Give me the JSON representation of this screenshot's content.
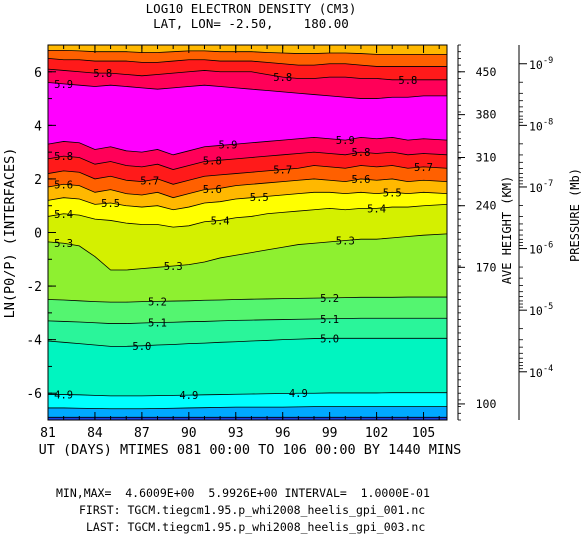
{
  "chart_data": {
    "type": "contour",
    "title": "LOG10 ELECTRON DENSITY (CM3)",
    "subtitle": "LAT, LON= -2.50,    180.00",
    "xlabel": "UT (DAYS) MTIMES 081 00:00 TO 106 00:00 BY 1440 MINS",
    "ylabel": "LN(P0/P) (INTERFACES)",
    "xlim": [
      81,
      106.5
    ],
    "ylim": [
      -7,
      7
    ],
    "x_ticks": [
      81,
      84,
      87,
      90,
      93,
      96,
      99,
      102,
      105
    ],
    "y_ticks": [
      -6,
      -4,
      -2,
      0,
      2,
      4,
      6
    ],
    "right_axis_height": {
      "label": "AVE HEIGHT (KM)",
      "ticks": [
        {
          "label": "100",
          "y": -6.4
        },
        {
          "label": "170",
          "y": -1.3
        },
        {
          "label": "240",
          "y": 1.0
        },
        {
          "label": "310",
          "y": 2.8
        },
        {
          "label": "380",
          "y": 4.4
        },
        {
          "label": "450",
          "y": 6.0
        }
      ]
    },
    "right_axis_pressure": {
      "label": "PRESSURE (Mb)",
      "ticks": [
        {
          "label": "10",
          "exp": "-9",
          "y": 6.3
        },
        {
          "label": "10",
          "exp": "-8",
          "y": 4.0
        },
        {
          "label": "10",
          "exp": "-7",
          "y": 1.7
        },
        {
          "label": "10",
          "exp": "-6",
          "y": -0.6
        },
        {
          "label": "10",
          "exp": "-5",
          "y": -2.9
        },
        {
          "label": "10",
          "exp": "-4",
          "y": -5.2
        }
      ]
    },
    "x": [
      81,
      82,
      83,
      84,
      85,
      86,
      87,
      88,
      89,
      90,
      91,
      92,
      93,
      94,
      95,
      96,
      97,
      98,
      99,
      100,
      101,
      102,
      103,
      104,
      105,
      106.5
    ],
    "levels": [
      4.6,
      4.7,
      4.8,
      4.9,
      5.0,
      5.1,
      5.2,
      5.3,
      5.4,
      5.5,
      5.6,
      5.7,
      5.8,
      5.9
    ],
    "fill_colors": [
      "#1b3fe0",
      "#00a8ff",
      "#00ffff",
      "#00f5c0",
      "#2af59a",
      "#54f570",
      "#8ef030",
      "#d4f000",
      "#ffff00",
      "#ffb800",
      "#ff6000",
      "#ff1a1a",
      "#ff0058",
      "#ff00ff",
      "#ff00ff"
    ],
    "contours": [
      {
        "level": 4.7,
        "y": [
          -6.9,
          -6.9,
          -6.9,
          -6.9,
          -6.9,
          -6.9,
          -6.9,
          -6.9,
          -6.9,
          -6.9,
          -6.9,
          -6.9,
          -6.9,
          -6.9,
          -6.9,
          -6.9,
          -6.9,
          -6.9,
          -6.9,
          -6.9,
          -6.9,
          -6.9,
          -6.9,
          -6.9,
          -6.9,
          -6.9
        ]
      },
      {
        "level": 4.8,
        "y": [
          -6.55,
          -6.55,
          -6.56,
          -6.57,
          -6.58,
          -6.58,
          -6.58,
          -6.57,
          -6.56,
          -6.55,
          -6.54,
          -6.53,
          -6.52,
          -6.52,
          -6.52,
          -6.52,
          -6.51,
          -6.5,
          -6.5,
          -6.5,
          -6.5,
          -6.5,
          -6.5,
          -6.5,
          -6.5,
          -6.5
        ]
      },
      {
        "level": 4.9,
        "y": [
          -6.05,
          -6.05,
          -6.06,
          -6.08,
          -6.1,
          -6.1,
          -6.1,
          -6.09,
          -6.08,
          -6.07,
          -6.06,
          -6.05,
          -6.04,
          -6.03,
          -6.02,
          -6.01,
          -6.0,
          -6.0,
          -5.99,
          -5.99,
          -5.99,
          -5.99,
          -5.98,
          -5.98,
          -5.98,
          -5.98
        ]
      },
      {
        "level": 5.0,
        "y": [
          -4.05,
          -4.1,
          -4.15,
          -4.2,
          -4.25,
          -4.25,
          -4.23,
          -4.2,
          -4.18,
          -4.15,
          -4.13,
          -4.1,
          -4.08,
          -4.05,
          -4.03,
          -4.0,
          -3.98,
          -3.96,
          -3.95,
          -3.95,
          -3.95,
          -3.95,
          -3.95,
          -3.95,
          -3.95,
          -3.95
        ]
      },
      {
        "level": 5.1,
        "y": [
          -3.3,
          -3.32,
          -3.34,
          -3.37,
          -3.4,
          -3.4,
          -3.38,
          -3.36,
          -3.35,
          -3.33,
          -3.32,
          -3.3,
          -3.28,
          -3.27,
          -3.26,
          -3.25,
          -3.24,
          -3.23,
          -3.22,
          -3.21,
          -3.2,
          -3.2,
          -3.2,
          -3.2,
          -3.2,
          -3.2
        ]
      },
      {
        "level": 5.2,
        "y": [
          -2.5,
          -2.52,
          -2.55,
          -2.58,
          -2.6,
          -2.6,
          -2.58,
          -2.57,
          -2.56,
          -2.55,
          -2.53,
          -2.52,
          -2.5,
          -2.49,
          -2.48,
          -2.47,
          -2.46,
          -2.45,
          -2.44,
          -2.43,
          -2.42,
          -2.42,
          -2.42,
          -2.41,
          -2.41,
          -2.41
        ]
      },
      {
        "level": 5.3,
        "y": [
          -0.35,
          -0.4,
          -0.5,
          -0.9,
          -1.4,
          -1.4,
          -1.35,
          -1.3,
          -1.25,
          -1.2,
          -1.1,
          -0.95,
          -0.85,
          -0.75,
          -0.65,
          -0.55,
          -0.45,
          -0.4,
          -0.35,
          -0.3,
          -0.25,
          -0.25,
          -0.2,
          -0.15,
          -0.1,
          -0.05
        ]
      },
      {
        "level": 5.4,
        "y": [
          0.6,
          0.7,
          0.65,
          0.5,
          0.45,
          0.35,
          0.3,
          0.3,
          0.2,
          0.25,
          0.4,
          0.45,
          0.55,
          0.6,
          0.7,
          0.75,
          0.8,
          0.85,
          0.9,
          0.85,
          0.9,
          0.9,
          0.95,
          0.95,
          1.0,
          1.05
        ]
      },
      {
        "level": 5.5,
        "y": [
          1.2,
          1.3,
          1.25,
          1.05,
          1.1,
          1.0,
          0.95,
          1.0,
          0.85,
          0.95,
          1.1,
          1.15,
          1.25,
          1.3,
          1.35,
          1.4,
          1.45,
          1.5,
          1.5,
          1.45,
          1.5,
          1.45,
          1.5,
          1.45,
          1.5,
          1.45
        ]
      },
      {
        "level": 5.6,
        "y": [
          1.7,
          1.8,
          1.75,
          1.5,
          1.6,
          1.45,
          1.4,
          1.5,
          1.3,
          1.45,
          1.6,
          1.65,
          1.75,
          1.8,
          1.85,
          1.9,
          1.95,
          2.0,
          1.95,
          1.9,
          2.0,
          1.95,
          2.0,
          1.9,
          1.95,
          1.9
        ]
      },
      {
        "level": 5.7,
        "y": [
          2.2,
          2.3,
          2.25,
          2.0,
          2.1,
          1.95,
          1.9,
          2.0,
          1.8,
          1.95,
          2.1,
          2.15,
          2.2,
          2.25,
          2.3,
          2.35,
          2.4,
          2.5,
          2.45,
          2.4,
          2.5,
          2.45,
          2.5,
          2.4,
          2.45,
          2.4
        ]
      },
      {
        "level": 5.8,
        "y": [
          2.75,
          2.85,
          2.8,
          2.55,
          2.65,
          2.5,
          2.45,
          2.55,
          2.35,
          2.5,
          2.65,
          2.7,
          2.75,
          2.8,
          2.85,
          2.9,
          2.95,
          3.0,
          2.95,
          2.9,
          3.0,
          2.95,
          3.0,
          2.9,
          2.95,
          2.9
        ]
      },
      {
        "level": 5.9,
        "y": [
          3.3,
          3.4,
          3.35,
          3.1,
          3.2,
          3.05,
          3.0,
          3.1,
          2.9,
          3.05,
          3.2,
          3.25,
          3.3,
          3.35,
          3.4,
          3.45,
          3.5,
          3.55,
          3.5,
          3.45,
          3.55,
          3.5,
          3.55,
          3.45,
          3.5,
          3.45
        ]
      },
      {
        "level": 5.9,
        "y": [
          5.6,
          5.55,
          5.5,
          5.45,
          5.5,
          5.45,
          5.4,
          5.35,
          5.4,
          5.45,
          5.5,
          5.45,
          5.4,
          5.35,
          5.3,
          5.25,
          5.2,
          5.15,
          5.1,
          5.05,
          5.0,
          5.0,
          5.05,
          5.05,
          5.1,
          5.1
        ]
      },
      {
        "level": 5.8,
        "y": [
          6.1,
          6.05,
          6.0,
          5.95,
          5.95,
          5.9,
          5.85,
          5.9,
          5.95,
          6.0,
          6.05,
          6.0,
          6.0,
          6.0,
          5.9,
          5.8,
          5.75,
          5.75,
          5.8,
          5.8,
          5.75,
          5.75,
          5.7,
          5.7,
          5.7,
          5.7
        ]
      },
      {
        "level": 5.7,
        "y": [
          6.5,
          6.45,
          6.45,
          6.4,
          6.4,
          6.4,
          6.35,
          6.35,
          6.4,
          6.45,
          6.45,
          6.4,
          6.4,
          6.4,
          6.35,
          6.3,
          6.25,
          6.25,
          6.3,
          6.3,
          6.25,
          6.2,
          6.2,
          6.2,
          6.2,
          6.2
        ]
      },
      {
        "level": 5.6,
        "y": [
          6.8,
          6.8,
          6.78,
          6.75,
          6.75,
          6.75,
          6.72,
          6.72,
          6.75,
          6.78,
          6.78,
          6.75,
          6.75,
          6.75,
          6.72,
          6.7,
          6.68,
          6.68,
          6.7,
          6.7,
          6.68,
          6.65,
          6.65,
          6.65,
          6.65,
          6.65
        ]
      }
    ],
    "labels": [
      {
        "text": "4.9",
        "x": 82.0,
        "y": -6.05
      },
      {
        "text": "4.9",
        "x": 90.0,
        "y": -6.07
      },
      {
        "text": "4.9",
        "x": 97.0,
        "y": -6.0
      },
      {
        "text": "5.0",
        "x": 87.0,
        "y": -4.23
      },
      {
        "text": "5.0",
        "x": 99.0,
        "y": -3.95
      },
      {
        "text": "5.1",
        "x": 88.0,
        "y": -3.36
      },
      {
        "text": "5.1",
        "x": 99.0,
        "y": -3.22
      },
      {
        "text": "5.2",
        "x": 88.0,
        "y": -2.57
      },
      {
        "text": "5.2",
        "x": 99.0,
        "y": -2.44
      },
      {
        "text": "5.3",
        "x": 82.0,
        "y": -0.4
      },
      {
        "text": "5.3",
        "x": 89.0,
        "y": -1.25
      },
      {
        "text": "5.3",
        "x": 100.0,
        "y": -0.3
      },
      {
        "text": "5.4",
        "x": 82.0,
        "y": 0.7
      },
      {
        "text": "5.4",
        "x": 92.0,
        "y": 0.45
      },
      {
        "text": "5.4",
        "x": 102.0,
        "y": 0.9
      },
      {
        "text": "5.5",
        "x": 85.0,
        "y": 1.1
      },
      {
        "text": "5.5",
        "x": 94.5,
        "y": 1.33
      },
      {
        "text": "5.5",
        "x": 103.0,
        "y": 1.5
      },
      {
        "text": "5.6",
        "x": 82.0,
        "y": 1.8
      },
      {
        "text": "5.6",
        "x": 91.5,
        "y": 1.63
      },
      {
        "text": "5.6",
        "x": 101.0,
        "y": 2.0
      },
      {
        "text": "5.7",
        "x": 87.5,
        "y": 1.95
      },
      {
        "text": "5.7",
        "x": 96.0,
        "y": 2.35
      },
      {
        "text": "5.7",
        "x": 105.0,
        "y": 2.45
      },
      {
        "text": "5.8",
        "x": 82.0,
        "y": 2.85
      },
      {
        "text": "5.8",
        "x": 91.5,
        "y": 2.68
      },
      {
        "text": "5.8",
        "x": 101.0,
        "y": 3.0
      },
      {
        "text": "5.8",
        "x": 84.5,
        "y": 5.95
      },
      {
        "text": "5.8",
        "x": 96.0,
        "y": 5.8
      },
      {
        "text": "5.8",
        "x": 104.0,
        "y": 5.7
      },
      {
        "text": "5.9",
        "x": 82.0,
        "y": 5.55
      },
      {
        "text": "5.9",
        "x": 92.5,
        "y": 3.28
      },
      {
        "text": "5.9",
        "x": 100.0,
        "y": 3.45
      }
    ]
  },
  "footer": {
    "minmax": "MIN,MAX=  4.6009E+00  5.9926E+00 INTERVAL=  1.0000E-01",
    "first": "FIRST: TGCM.tiegcm1.95.p_whi2008_heelis_gpi_001.nc",
    "last": "LAST: TGCM.tiegcm1.95.p_whi2008_heelis_gpi_003.nc"
  }
}
